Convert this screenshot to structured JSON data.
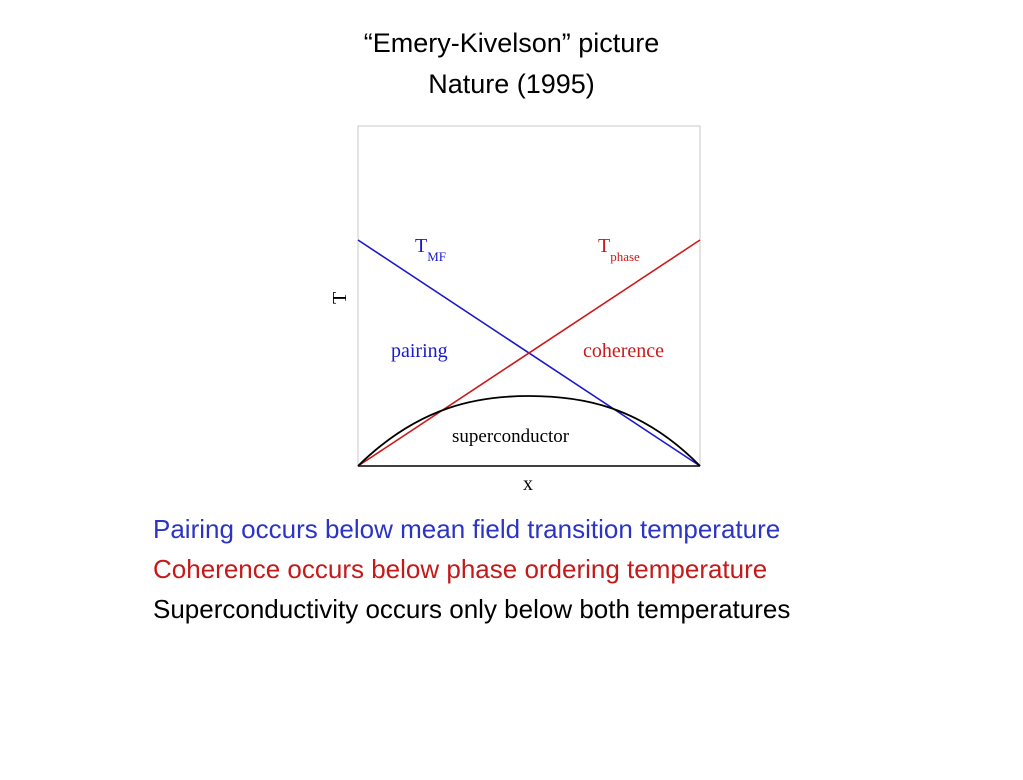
{
  "title": {
    "line1": "“Emery-Kivelson” picture",
    "line2": "Nature (1995)"
  },
  "diagram": {
    "axis_x_label": "x",
    "axis_y_label": "T",
    "curve_tmf": {
      "symbol": "T",
      "subscript": "MF",
      "color": "#1a1acc"
    },
    "curve_tphase": {
      "symbol": "T",
      "subscript": "phase",
      "color": "#cc1a1a"
    },
    "curve_sc": {
      "color": "#000000"
    },
    "region_pairing": "pairing",
    "region_coherence": "coherence",
    "region_superconductor": "superconductor"
  },
  "captions": [
    {
      "text": "Pairing occurs below mean field transition temperature",
      "color": "#2b34c4"
    },
    {
      "text": "Coherence occurs below phase ordering temperature",
      "color": "#c41a1a"
    },
    {
      "text": "Superconductivity occurs only below both temperatures",
      "color": "#000000"
    }
  ]
}
